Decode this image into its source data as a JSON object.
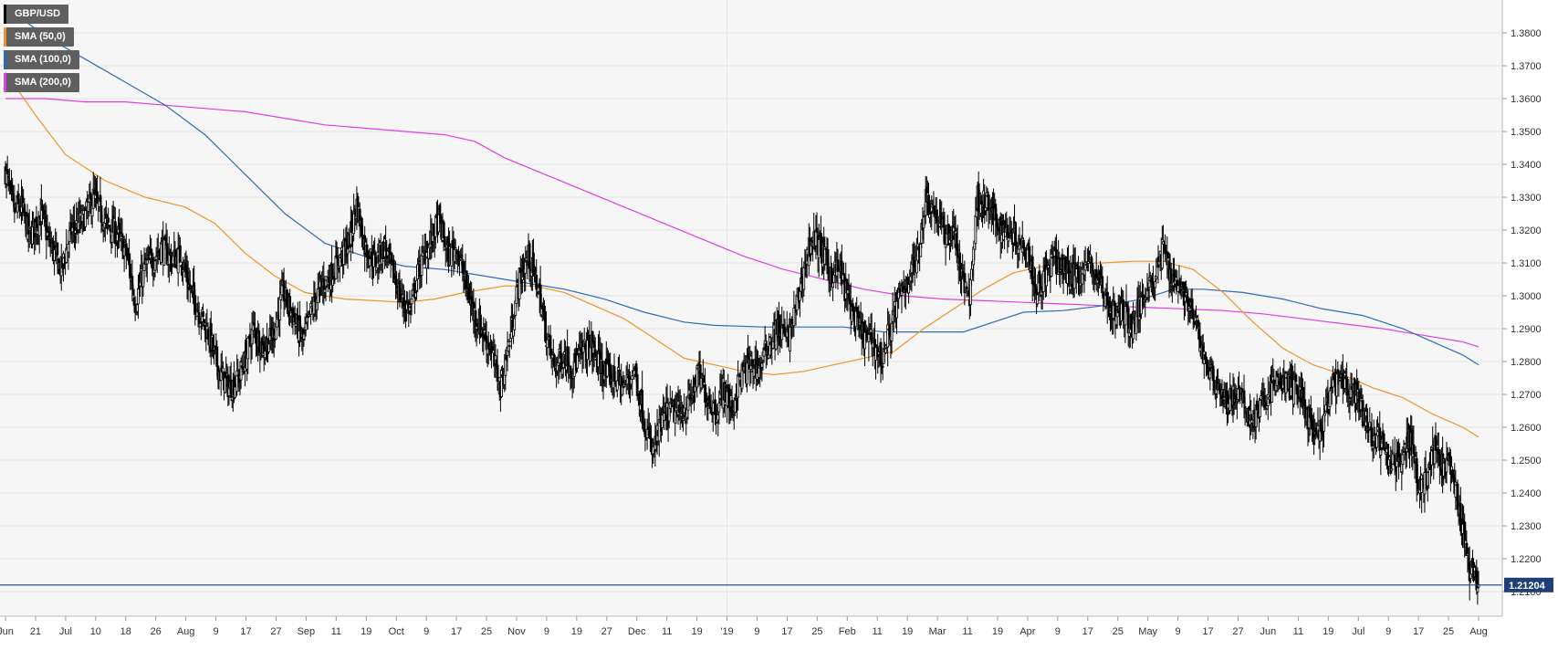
{
  "legend": [
    {
      "label": "GBP/USD",
      "color": "#000000"
    },
    {
      "label": "SMA (50,0)",
      "color": "#f0932b"
    },
    {
      "label": "SMA (100,0)",
      "color": "#2e6bb5"
    },
    {
      "label": "SMA (200,0)",
      "color": "#e23ee0"
    }
  ],
  "chart_data": {
    "type": "candlestick",
    "title": "",
    "xlabel": "",
    "ylabel": "",
    "ylim": [
      1.2025,
      1.39
    ],
    "yticks": [
      "1.3800",
      "1.3700",
      "1.3600",
      "1.3500",
      "1.3400",
      "1.3300",
      "1.3200",
      "1.3100",
      "1.3000",
      "1.2900",
      "1.2800",
      "1.2700",
      "1.2600",
      "1.2500",
      "1.2400",
      "1.2300",
      "1.2200",
      "1.2100"
    ],
    "xticks": [
      "Jun",
      "21",
      "Jul",
      "10",
      "18",
      "26",
      "Aug",
      "9",
      "17",
      "27",
      "Sep",
      "11",
      "19",
      "Oct",
      "9",
      "17",
      "25",
      "Nov",
      "9",
      "19",
      "27",
      "Dec",
      "11",
      "19",
      "'19",
      "9",
      "17",
      "25",
      "Feb",
      "11",
      "19",
      "Mar",
      "11",
      "19",
      "Apr",
      "9",
      "17",
      "25",
      "May",
      "9",
      "17",
      "27",
      "Jun",
      "11",
      "19",
      "Jul",
      "9",
      "17",
      "25",
      "Aug"
    ],
    "grid": true,
    "last_price": "1.21204",
    "last_value": 1.212,
    "colors": {
      "up": "#ffffff",
      "down": "#000000",
      "sma50": "#f0932b",
      "sma100": "#2e6bb5",
      "sma200": "#e23ee0",
      "price_line": "#1f3f7a"
    },
    "close_path": [
      [
        0,
        1.338
      ],
      [
        8,
        1.326
      ],
      [
        16,
        1.327
      ],
      [
        24,
        1.318
      ],
      [
        36,
        1.325
      ],
      [
        44,
        1.316
      ],
      [
        56,
        1.308
      ],
      [
        66,
        1.32
      ],
      [
        78,
        1.323
      ],
      [
        88,
        1.33
      ],
      [
        100,
        1.322
      ],
      [
        112,
        1.319
      ],
      [
        122,
        1.312
      ],
      [
        130,
        1.298
      ],
      [
        140,
        1.309
      ],
      [
        148,
        1.311
      ],
      [
        156,
        1.315
      ],
      [
        166,
        1.311
      ],
      [
        176,
        1.312
      ],
      [
        184,
        1.303
      ],
      [
        194,
        1.295
      ],
      [
        204,
        1.288
      ],
      [
        214,
        1.277
      ],
      [
        224,
        1.272
      ],
      [
        232,
        1.274
      ],
      [
        240,
        1.28
      ],
      [
        248,
        1.29
      ],
      [
        258,
        1.284
      ],
      [
        268,
        1.288
      ],
      [
        278,
        1.301
      ],
      [
        288,
        1.294
      ],
      [
        298,
        1.286
      ],
      [
        306,
        1.295
      ],
      [
        316,
        1.303
      ],
      [
        326,
        1.306
      ],
      [
        336,
        1.312
      ],
      [
        344,
        1.316
      ],
      [
        352,
        1.328
      ],
      [
        360,
        1.315
      ],
      [
        370,
        1.31
      ],
      [
        380,
        1.315
      ],
      [
        390,
        1.305
      ],
      [
        398,
        1.298
      ],
      [
        406,
        1.296
      ],
      [
        414,
        1.308
      ],
      [
        424,
        1.315
      ],
      [
        434,
        1.323
      ],
      [
        444,
        1.312
      ],
      [
        452,
        1.315
      ],
      [
        460,
        1.305
      ],
      [
        468,
        1.296
      ],
      [
        478,
        1.289
      ],
      [
        486,
        1.284
      ],
      [
        496,
        1.272
      ],
      [
        506,
        1.288
      ],
      [
        514,
        1.304
      ],
      [
        524,
        1.312
      ],
      [
        534,
        1.302
      ],
      [
        542,
        1.288
      ],
      [
        550,
        1.278
      ],
      [
        560,
        1.282
      ],
      [
        568,
        1.278
      ],
      [
        576,
        1.282
      ],
      [
        586,
        1.285
      ],
      [
        594,
        1.28
      ],
      [
        602,
        1.276
      ],
      [
        612,
        1.275
      ],
      [
        620,
        1.272
      ],
      [
        630,
        1.278
      ],
      [
        640,
        1.262
      ],
      [
        648,
        1.252
      ],
      [
        658,
        1.262
      ],
      [
        666,
        1.265
      ],
      [
        676,
        1.264
      ],
      [
        686,
        1.268
      ],
      [
        694,
        1.276
      ],
      [
        702,
        1.27
      ],
      [
        712,
        1.265
      ],
      [
        720,
        1.272
      ],
      [
        728,
        1.265
      ],
      [
        736,
        1.275
      ],
      [
        746,
        1.279
      ],
      [
        756,
        1.278
      ],
      [
        764,
        1.285
      ],
      [
        774,
        1.29
      ],
      [
        784,
        1.287
      ],
      [
        792,
        1.296
      ],
      [
        800,
        1.308
      ],
      [
        808,
        1.318
      ],
      [
        816,
        1.315
      ],
      [
        826,
        1.307
      ],
      [
        836,
        1.308
      ],
      [
        844,
        1.299
      ],
      [
        852,
        1.292
      ],
      [
        862,
        1.287
      ],
      [
        870,
        1.286
      ],
      [
        878,
        1.28
      ],
      [
        886,
        1.29
      ],
      [
        894,
        1.298
      ],
      [
        904,
        1.305
      ],
      [
        914,
        1.312
      ],
      [
        922,
        1.33
      ],
      [
        932,
        1.325
      ],
      [
        942,
        1.318
      ],
      [
        950,
        1.32
      ],
      [
        958,
        1.305
      ],
      [
        966,
        1.3
      ],
      [
        974,
        1.33
      ],
      [
        982,
        1.328
      ],
      [
        990,
        1.324
      ],
      [
        998,
        1.32
      ],
      [
        1008,
        1.32
      ],
      [
        1016,
        1.316
      ],
      [
        1024,
        1.315
      ],
      [
        1032,
        1.302
      ],
      [
        1042,
        1.306
      ],
      [
        1050,
        1.311
      ],
      [
        1060,
        1.308
      ],
      [
        1068,
        1.306
      ],
      [
        1078,
        1.307
      ],
      [
        1086,
        1.31
      ],
      [
        1094,
        1.306
      ],
      [
        1104,
        1.298
      ],
      [
        1112,
        1.294
      ],
      [
        1120,
        1.296
      ],
      [
        1128,
        1.29
      ],
      [
        1136,
        1.296
      ],
      [
        1144,
        1.304
      ],
      [
        1152,
        1.305
      ],
      [
        1160,
        1.315
      ],
      [
        1168,
        1.306
      ],
      [
        1176,
        1.304
      ],
      [
        1184,
        1.298
      ],
      [
        1192,
        1.292
      ],
      [
        1200,
        1.282
      ],
      [
        1208,
        1.276
      ],
      [
        1216,
        1.272
      ],
      [
        1224,
        1.267
      ],
      [
        1232,
        1.27
      ],
      [
        1240,
        1.268
      ],
      [
        1248,
        1.262
      ],
      [
        1256,
        1.265
      ],
      [
        1264,
        1.27
      ],
      [
        1272,
        1.273
      ],
      [
        1280,
        1.274
      ],
      [
        1288,
        1.272
      ],
      [
        1296,
        1.272
      ],
      [
        1304,
        1.264
      ],
      [
        1312,
        1.256
      ],
      [
        1320,
        1.26
      ],
      [
        1328,
        1.272
      ],
      [
        1336,
        1.274
      ],
      [
        1344,
        1.272
      ],
      [
        1352,
        1.27
      ],
      [
        1360,
        1.264
      ],
      [
        1368,
        1.258
      ],
      [
        1376,
        1.256
      ],
      [
        1384,
        1.25
      ],
      [
        1392,
        1.249
      ],
      [
        1400,
        1.253
      ],
      [
        1408,
        1.257
      ],
      [
        1416,
        1.242
      ],
      [
        1424,
        1.245
      ],
      [
        1432,
        1.253
      ],
      [
        1440,
        1.248
      ],
      [
        1448,
        1.247
      ],
      [
        1456,
        1.236
      ],
      [
        1464,
        1.22
      ],
      [
        1470,
        1.215
      ],
      [
        1476,
        1.212
      ]
    ],
    "range_path": [
      [
        0,
        0.01
      ],
      [
        300,
        0.009
      ],
      [
        600,
        0.01
      ],
      [
        900,
        0.01
      ],
      [
        1200,
        0.009
      ],
      [
        1476,
        0.011
      ]
    ],
    "sma50": [
      [
        0,
        1.368
      ],
      [
        30,
        1.355
      ],
      [
        60,
        1.343
      ],
      [
        100,
        1.335
      ],
      [
        140,
        1.33
      ],
      [
        180,
        1.327
      ],
      [
        210,
        1.322
      ],
      [
        240,
        1.313
      ],
      [
        270,
        1.306
      ],
      [
        300,
        1.301
      ],
      [
        340,
        1.299
      ],
      [
        370,
        1.2985
      ],
      [
        400,
        1.298
      ],
      [
        430,
        1.299
      ],
      [
        460,
        1.301
      ],
      [
        500,
        1.303
      ],
      [
        530,
        1.303
      ],
      [
        560,
        1.301
      ],
      [
        590,
        1.297
      ],
      [
        620,
        1.293
      ],
      [
        650,
        1.287
      ],
      [
        680,
        1.281
      ],
      [
        710,
        1.279
      ],
      [
        740,
        1.277
      ],
      [
        770,
        1.276
      ],
      [
        800,
        1.277
      ],
      [
        830,
        1.279
      ],
      [
        860,
        1.281
      ],
      [
        890,
        1.283
      ],
      [
        920,
        1.29
      ],
      [
        950,
        1.296
      ],
      [
        980,
        1.302
      ],
      [
        1010,
        1.307
      ],
      [
        1040,
        1.309
      ],
      [
        1070,
        1.31
      ],
      [
        1100,
        1.31
      ],
      [
        1130,
        1.3105
      ],
      [
        1160,
        1.3105
      ],
      [
        1190,
        1.308
      ],
      [
        1220,
        1.301
      ],
      [
        1250,
        1.292
      ],
      [
        1280,
        1.284
      ],
      [
        1310,
        1.279
      ],
      [
        1340,
        1.276
      ],
      [
        1370,
        1.272
      ],
      [
        1400,
        1.269
      ],
      [
        1430,
        1.264
      ],
      [
        1460,
        1.26
      ],
      [
        1476,
        1.257
      ]
    ],
    "sma100": [
      [
        0,
        1.388
      ],
      [
        40,
        1.379
      ],
      [
        80,
        1.372
      ],
      [
        120,
        1.365
      ],
      [
        160,
        1.358
      ],
      [
        200,
        1.349
      ],
      [
        240,
        1.337
      ],
      [
        280,
        1.325
      ],
      [
        320,
        1.316
      ],
      [
        360,
        1.312
      ],
      [
        400,
        1.309
      ],
      [
        440,
        1.308
      ],
      [
        480,
        1.306
      ],
      [
        520,
        1.304
      ],
      [
        560,
        1.302
      ],
      [
        600,
        1.299
      ],
      [
        640,
        1.295
      ],
      [
        680,
        1.292
      ],
      [
        710,
        1.291
      ],
      [
        760,
        1.2905
      ],
      [
        800,
        1.2905
      ],
      [
        840,
        1.2905
      ],
      [
        880,
        1.289
      ],
      [
        920,
        1.289
      ],
      [
        960,
        1.289
      ],
      [
        990,
        1.292
      ],
      [
        1020,
        1.295
      ],
      [
        1060,
        1.2955
      ],
      [
        1100,
        1.297
      ],
      [
        1140,
        1.299
      ],
      [
        1170,
        1.302
      ],
      [
        1200,
        1.302
      ],
      [
        1240,
        1.301
      ],
      [
        1280,
        1.299
      ],
      [
        1320,
        1.296
      ],
      [
        1360,
        1.294
      ],
      [
        1400,
        1.29
      ],
      [
        1430,
        1.286
      ],
      [
        1460,
        1.282
      ],
      [
        1476,
        1.279
      ]
    ],
    "sma200": [
      [
        0,
        1.36
      ],
      [
        40,
        1.36
      ],
      [
        80,
        1.359
      ],
      [
        120,
        1.359
      ],
      [
        160,
        1.358
      ],
      [
        200,
        1.357
      ],
      [
        240,
        1.356
      ],
      [
        280,
        1.354
      ],
      [
        320,
        1.352
      ],
      [
        360,
        1.351
      ],
      [
        400,
        1.35
      ],
      [
        440,
        1.349
      ],
      [
        470,
        1.347
      ],
      [
        500,
        1.342
      ],
      [
        540,
        1.337
      ],
      [
        580,
        1.332
      ],
      [
        620,
        1.327
      ],
      [
        660,
        1.322
      ],
      [
        700,
        1.317
      ],
      [
        740,
        1.312
      ],
      [
        780,
        1.308
      ],
      [
        820,
        1.305
      ],
      [
        860,
        1.302
      ],
      [
        900,
        1.3
      ],
      [
        940,
        1.299
      ],
      [
        980,
        1.2985
      ],
      [
        1020,
        1.298
      ],
      [
        1060,
        1.2975
      ],
      [
        1100,
        1.297
      ],
      [
        1140,
        1.2965
      ],
      [
        1180,
        1.296
      ],
      [
        1220,
        1.2955
      ],
      [
        1260,
        1.2945
      ],
      [
        1300,
        1.293
      ],
      [
        1340,
        1.2915
      ],
      [
        1380,
        1.29
      ],
      [
        1420,
        1.288
      ],
      [
        1460,
        1.286
      ],
      [
        1476,
        1.2845
      ]
    ]
  }
}
